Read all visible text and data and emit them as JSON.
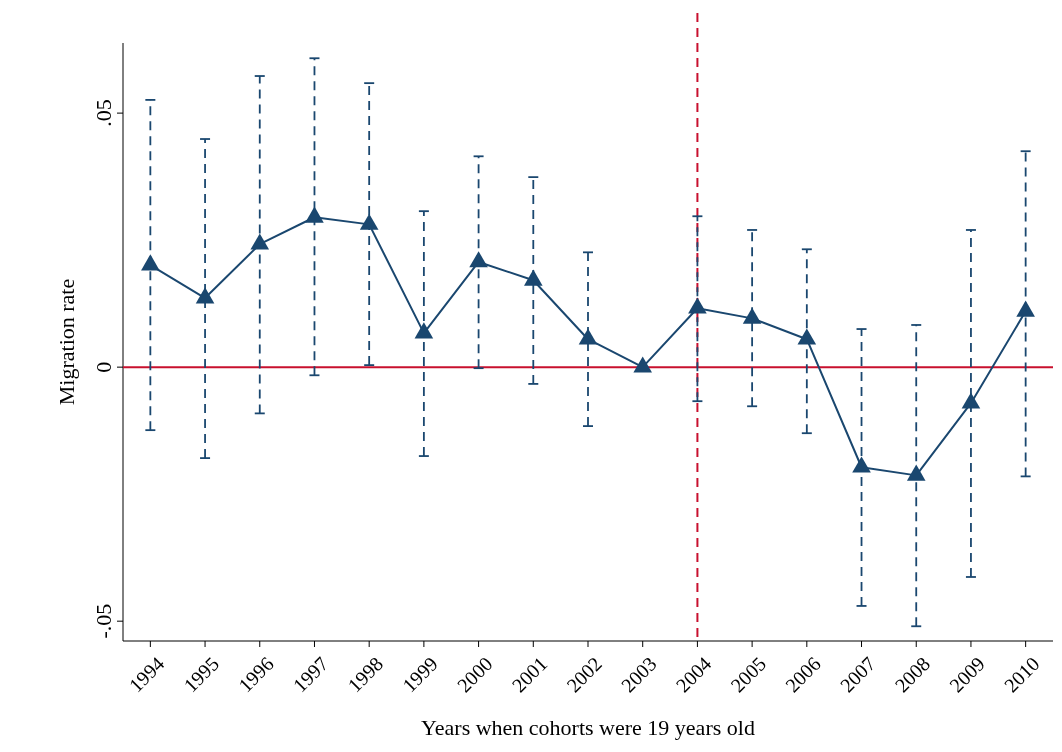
{
  "chart_data": {
    "type": "line",
    "xlabel": "Years when cohorts were 19 years old",
    "ylabel": "Migration rate",
    "categories": [
      "1994",
      "1995",
      "1996",
      "1997",
      "1998",
      "1999",
      "2000",
      "2001",
      "2002",
      "2003",
      "2004",
      "2005",
      "2006",
      "2007",
      "2008",
      "2009",
      "2010"
    ],
    "series": [
      {
        "color": "#1a476f",
        "values": [
          0.0201,
          0.0136,
          0.0242,
          0.0295,
          0.0281,
          0.0067,
          0.0207,
          0.0171,
          0.0055,
          0,
          0.0116,
          0.0096,
          0.0055,
          -0.0197,
          -0.0213,
          -0.0071,
          0.011
        ],
        "errors": [
          [
            -0.0124,
            0.0526
          ],
          [
            -0.0179,
            0.0449
          ],
          [
            -0.0091,
            0.0573
          ],
          [
            -0.0016,
            0.0608
          ],
          [
            0.0004,
            0.0559
          ],
          [
            -0.0175,
            0.0307
          ],
          [
            -0.0002,
            0.0415
          ],
          [
            -0.0033,
            0.0374
          ],
          [
            -0.0116,
            0.0226
          ],
          null,
          [
            -0.0067,
            0.0297
          ],
          [
            -0.0077,
            0.027
          ],
          [
            -0.013,
            0.0232
          ],
          [
            -0.047,
            0.0075
          ],
          [
            -0.051,
            0.0083
          ],
          [
            -0.0413,
            0.027
          ],
          [
            -0.0215,
            0.0425
          ]
        ]
      }
    ],
    "ylim": [
      -0.0539,
      0.0638
    ],
    "yticks": [
      {
        "value": -0.05,
        "label": "-.05"
      },
      {
        "value": 0,
        "label": "0"
      },
      {
        "value": 0.05,
        "label": ".05"
      }
    ],
    "ref_lines": [
      {
        "axis": "y",
        "value": 0,
        "color": "#c8102e",
        "line_style": "solid"
      },
      {
        "axis": "x",
        "value": "2004",
        "color": "#c8102e",
        "line_style": "dashed"
      }
    ],
    "marker": "triangle",
    "line_style": "solid"
  }
}
